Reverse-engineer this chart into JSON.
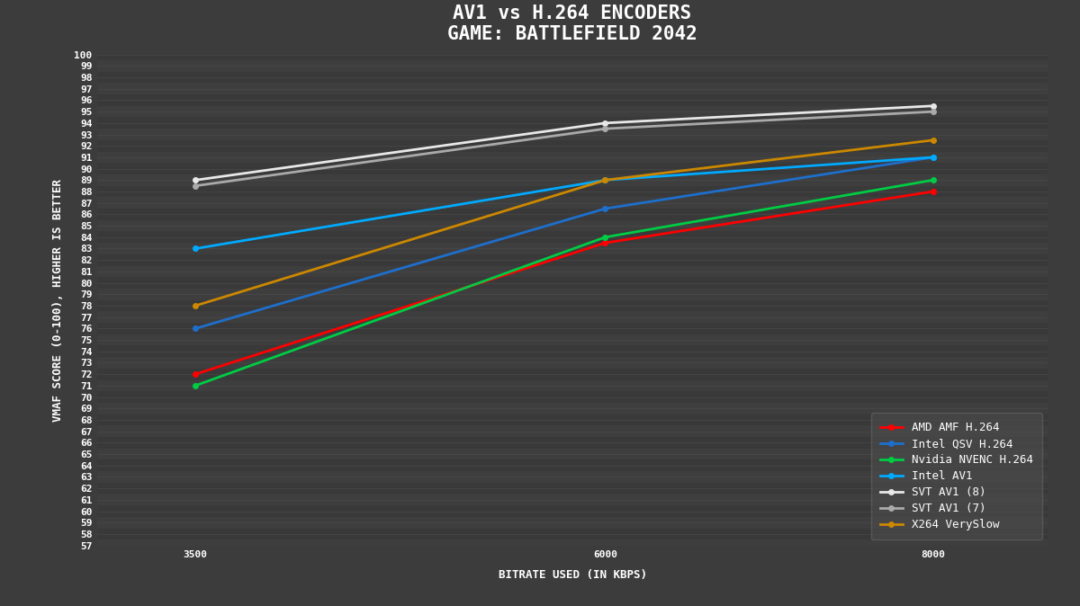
{
  "title_line1": "AV1 vs H.264 ENCODERS",
  "title_line2": "GAME: BATTLEFIELD 2042",
  "xlabel": "BITRATE USED (IN KBPS)",
  "ylabel": "VMAF SCORE (0-100), HIGHER IS BETTER",
  "x_values": [
    3500,
    6000,
    8000
  ],
  "x_ticks": [
    3500,
    6000,
    8000
  ],
  "ylim": [
    57,
    100
  ],
  "yticks": [
    57,
    58,
    59,
    60,
    61,
    62,
    63,
    64,
    65,
    66,
    67,
    68,
    69,
    70,
    71,
    72,
    73,
    74,
    75,
    76,
    77,
    78,
    79,
    80,
    81,
    82,
    83,
    84,
    85,
    86,
    87,
    88,
    89,
    90,
    91,
    92,
    93,
    94,
    95,
    96,
    97,
    98,
    99,
    100
  ],
  "series": [
    {
      "label": "AMD AMF H.264",
      "color": "#ff0000",
      "values": [
        72.0,
        83.5,
        88.0
      ],
      "marker": "o",
      "linewidth": 2.0
    },
    {
      "label": "Intel QSV H.264",
      "color": "#1e6fcc",
      "values": [
        76.0,
        86.5,
        91.0
      ],
      "marker": "o",
      "linewidth": 2.0
    },
    {
      "label": "Nvidia NVENC H.264",
      "color": "#00cc44",
      "values": [
        71.0,
        84.0,
        89.0
      ],
      "marker": "o",
      "linewidth": 2.0
    },
    {
      "label": "Intel AV1",
      "color": "#00aaff",
      "values": [
        83.0,
        89.0,
        91.0
      ],
      "marker": "o",
      "linewidth": 2.0
    },
    {
      "label": "SVT AV1 (8)",
      "color": "#e8e8e8",
      "values": [
        89.0,
        94.0,
        95.5
      ],
      "marker": "o",
      "linewidth": 2.0
    },
    {
      "label": "SVT AV1 (7)",
      "color": "#aaaaaa",
      "values": [
        88.5,
        93.5,
        95.0
      ],
      "marker": "o",
      "linewidth": 2.0
    },
    {
      "label": "X264 VerySlow",
      "color": "#cc8800",
      "values": [
        78.0,
        89.0,
        92.5
      ],
      "marker": "o",
      "linewidth": 2.0
    }
  ],
  "bg_color": "#3c3c3c",
  "plot_bg_color": "#3c3c3c",
  "text_color": "#ffffff",
  "grid_color": "#4a4a4a",
  "legend_bg_color": "#4a4a4a",
  "title_fontsize": 15,
  "label_fontsize": 9,
  "tick_fontsize": 8,
  "legend_fontsize": 9
}
